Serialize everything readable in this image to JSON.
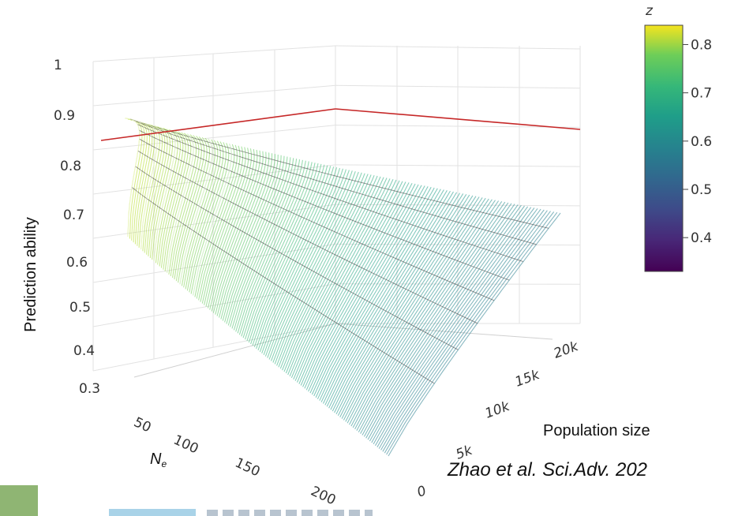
{
  "chart_data": {
    "type": "surface3d",
    "z_axis": {
      "label": "Prediction ability",
      "ticks": [
        "1",
        "0.9",
        "0.8",
        "0.7",
        "0.6",
        "0.5",
        "0.4",
        "0.3"
      ],
      "range": [
        0.3,
        1.0
      ]
    },
    "x_axis": {
      "label": "N",
      "label_subscript": "e",
      "ticks": [
        "50",
        "100",
        "150",
        "200"
      ],
      "range": [
        0,
        200
      ]
    },
    "y_axis": {
      "label": "Population size",
      "ticks": [
        "0",
        "5k",
        "10k",
        "15k",
        "20k"
      ],
      "range": [
        0,
        20000
      ]
    },
    "colorbar": {
      "title": "z",
      "ticks": [
        "0.8",
        "0.7",
        "0.6",
        "0.5",
        "0.4"
      ],
      "range": [
        0.33,
        0.84
      ],
      "colorscale": "viridis"
    },
    "reference_line": {
      "z": 0.84,
      "color": "#c62828"
    },
    "surface_samples": [
      {
        "Ne": 10,
        "population_size": 0,
        "z": 0.62
      },
      {
        "Ne": 10,
        "population_size": 20000,
        "z": 0.84
      },
      {
        "Ne": 200,
        "population_size": 0,
        "z": 0.33
      },
      {
        "Ne": 200,
        "population_size": 20000,
        "z": 0.62
      }
    ]
  },
  "citation": "Zhao et al. Sci.Adv. 202"
}
